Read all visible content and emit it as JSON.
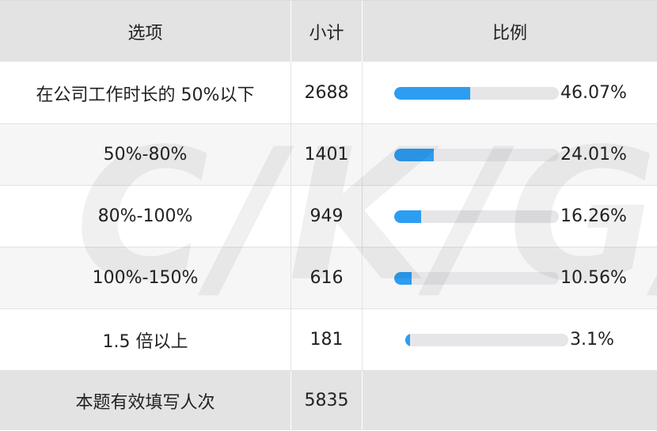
{
  "chart_data": {
    "type": "table",
    "columns": [
      "选项",
      "小计",
      "比例"
    ],
    "rows": [
      {
        "option": "在公司工作时长的 50%以下",
        "count": "2688",
        "ratio": 46.07,
        "ratio_label": "46.07%"
      },
      {
        "option": "50%-80%",
        "count": "1401",
        "ratio": 24.01,
        "ratio_label": "24.01%"
      },
      {
        "option": "80%-100%",
        "count": "949",
        "ratio": 16.26,
        "ratio_label": "16.26%"
      },
      {
        "option": "100%-150%",
        "count": "616",
        "ratio": 10.56,
        "ratio_label": "10.56%"
      },
      {
        "option": "1.5 倍以上",
        "count": "181",
        "ratio": 3.1,
        "ratio_label": "3.1%"
      }
    ],
    "footer": {
      "label": "本题有效填写人次",
      "count": "5835"
    },
    "bar_color": "#2d9df2",
    "track_color": "#e6e6e8",
    "watermark": "C/K/G/S/B"
  }
}
